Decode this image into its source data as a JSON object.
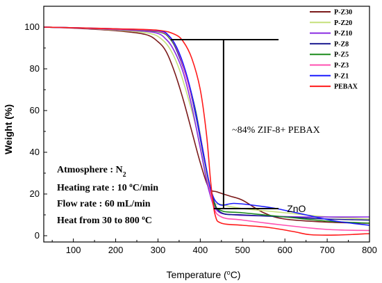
{
  "chart_data": {
    "type": "line",
    "xlabel": "Temperature (",
    "xlabel_sup": "o",
    "xlabel_tail": "C)",
    "ylabel": "Weight (%)",
    "xlim": [
      30,
      800
    ],
    "ylim": [
      -3,
      110
    ],
    "xticks": [
      100,
      200,
      300,
      400,
      500,
      600,
      700,
      800
    ],
    "yticks": [
      0,
      20,
      40,
      60,
      80,
      100
    ],
    "grid": false,
    "legend_position": "top-right",
    "series": [
      {
        "name": "P-Z30",
        "color": "#7b1a1a",
        "points": [
          [
            30,
            100
          ],
          [
            100,
            99.5
          ],
          [
            200,
            98.3
          ],
          [
            270,
            96.5
          ],
          [
            300,
            93
          ],
          [
            320,
            88
          ],
          [
            340,
            78
          ],
          [
            360,
            65
          ],
          [
            380,
            50
          ],
          [
            400,
            35
          ],
          [
            420,
            23
          ],
          [
            440,
            21
          ],
          [
            470,
            19
          ],
          [
            500,
            17
          ],
          [
            550,
            11
          ],
          [
            600,
            8
          ],
          [
            700,
            6.5
          ],
          [
            800,
            6
          ]
        ]
      },
      {
        "name": "P-Z20",
        "color": "#c5e07a",
        "points": [
          [
            30,
            100
          ],
          [
            100,
            99.6
          ],
          [
            200,
            98.6
          ],
          [
            280,
            97
          ],
          [
            310,
            94
          ],
          [
            330,
            89
          ],
          [
            350,
            80
          ],
          [
            370,
            67
          ],
          [
            390,
            52
          ],
          [
            410,
            33
          ],
          [
            430,
            17
          ],
          [
            450,
            15
          ],
          [
            500,
            13
          ],
          [
            550,
            12
          ],
          [
            600,
            11
          ],
          [
            700,
            9
          ],
          [
            800,
            8
          ]
        ]
      },
      {
        "name": "P-Z10",
        "color": "#8a2be2",
        "points": [
          [
            30,
            100
          ],
          [
            100,
            99.6
          ],
          [
            200,
            98.8
          ],
          [
            290,
            97.5
          ],
          [
            320,
            94
          ],
          [
            340,
            88
          ],
          [
            360,
            78
          ],
          [
            380,
            62
          ],
          [
            400,
            42
          ],
          [
            420,
            22
          ],
          [
            440,
            12
          ],
          [
            480,
            10
          ],
          [
            550,
            9.5
          ],
          [
            650,
            9
          ],
          [
            800,
            9
          ]
        ]
      },
      {
        "name": "P-Z8",
        "color": "#1a1a8f",
        "points": [
          [
            30,
            100
          ],
          [
            100,
            99.7
          ],
          [
            200,
            99
          ],
          [
            300,
            97.8
          ],
          [
            330,
            94
          ],
          [
            350,
            86
          ],
          [
            370,
            74
          ],
          [
            390,
            57
          ],
          [
            410,
            36
          ],
          [
            430,
            18
          ],
          [
            450,
            11
          ],
          [
            500,
            10
          ],
          [
            600,
            9
          ],
          [
            700,
            8
          ],
          [
            800,
            7.5
          ]
        ]
      },
      {
        "name": "P-Z5",
        "color": "#1a8a1a",
        "points": [
          [
            30,
            100
          ],
          [
            100,
            99.7
          ],
          [
            200,
            99
          ],
          [
            300,
            97.8
          ],
          [
            330,
            94
          ],
          [
            350,
            87
          ],
          [
            370,
            75
          ],
          [
            390,
            59
          ],
          [
            410,
            37
          ],
          [
            430,
            17
          ],
          [
            450,
            12
          ],
          [
            500,
            11
          ],
          [
            600,
            9
          ],
          [
            700,
            7
          ],
          [
            800,
            6
          ]
        ]
      },
      {
        "name": "P-Z3",
        "color": "#ff4fb0",
        "points": [
          [
            30,
            100
          ],
          [
            100,
            99.7
          ],
          [
            200,
            99
          ],
          [
            300,
            98
          ],
          [
            330,
            94.5
          ],
          [
            350,
            87
          ],
          [
            370,
            74
          ],
          [
            390,
            58
          ],
          [
            410,
            37
          ],
          [
            430,
            15
          ],
          [
            450,
            9
          ],
          [
            500,
            7.5
          ],
          [
            600,
            5
          ],
          [
            700,
            3
          ],
          [
            800,
            2.5
          ]
        ]
      },
      {
        "name": "P-Z1",
        "color": "#1a1aff",
        "points": [
          [
            30,
            100
          ],
          [
            100,
            99.7
          ],
          [
            200,
            99.2
          ],
          [
            300,
            98.3
          ],
          [
            325,
            96
          ],
          [
            345,
            90
          ],
          [
            365,
            79
          ],
          [
            385,
            63
          ],
          [
            405,
            42
          ],
          [
            425,
            22
          ],
          [
            445,
            15
          ],
          [
            480,
            15.5
          ],
          [
            530,
            14.5
          ],
          [
            580,
            13
          ],
          [
            650,
            10
          ],
          [
            720,
            7
          ],
          [
            800,
            5
          ]
        ]
      },
      {
        "name": "PEBAX",
        "color": "#ff1a1a",
        "points": [
          [
            30,
            100
          ],
          [
            100,
            99.7
          ],
          [
            200,
            99.2
          ],
          [
            300,
            98.5
          ],
          [
            340,
            96.5
          ],
          [
            360,
            93
          ],
          [
            380,
            85
          ],
          [
            400,
            70
          ],
          [
            415,
            48
          ],
          [
            425,
            25
          ],
          [
            435,
            10
          ],
          [
            450,
            6
          ],
          [
            500,
            5
          ],
          [
            560,
            4
          ],
          [
            620,
            2
          ],
          [
            660,
            0.5
          ],
          [
            720,
            0.3
          ],
          [
            800,
            1
          ]
        ]
      }
    ],
    "annotations": {
      "percent_label": "~84% ZIF-8+ PEBAX",
      "top_line_y": 94,
      "top_line_x": [
        330,
        585
      ],
      "bottom_line_y": 13,
      "bottom_line_x": [
        432,
        585
      ],
      "vline_x": 455,
      "zno_label": "ZnO",
      "zno_at": [
        605,
        13
      ]
    },
    "conditions": {
      "atmosphere": "Atmosphere : N",
      "atmosphere_sub": "2",
      "heating_rate": "Heating rate : 10 ",
      "heating_rate_sup": "o",
      "heating_rate_tail": "C/min",
      "flow_rate": "Flow rate : 60 mL/min",
      "heat_from": "Heat from 30 to 800 ",
      "heat_from_sup": "o",
      "heat_from_tail": "C"
    }
  }
}
